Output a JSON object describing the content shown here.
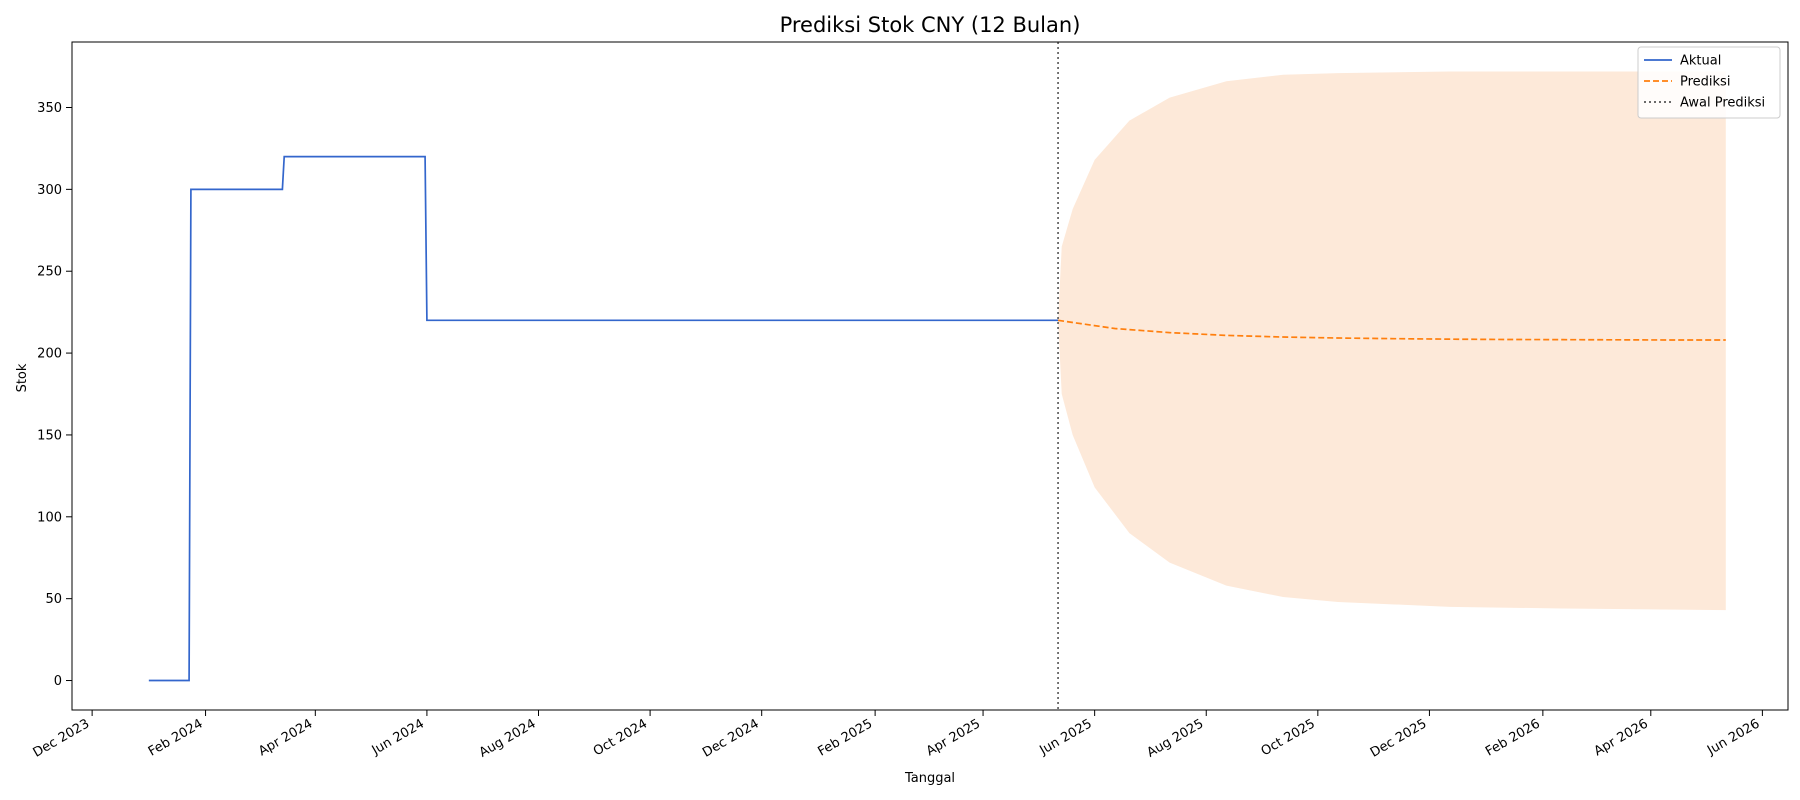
{
  "chart_data": {
    "type": "line",
    "title": "Prediksi Stok CNY (12 Bulan)",
    "xlabel": "Tanggal",
    "ylabel": "Stok",
    "x_type": "date",
    "xlim": [
      "2023-11-20",
      "2026-06-15"
    ],
    "ylim": [
      -18,
      390
    ],
    "y_ticks": [
      0,
      50,
      100,
      150,
      200,
      250,
      300,
      350
    ],
    "x_ticks": [
      {
        "date": "2023-12-01",
        "label": "Dec 2023"
      },
      {
        "date": "2024-02-01",
        "label": "Feb 2024"
      },
      {
        "date": "2024-04-01",
        "label": "Apr 2024"
      },
      {
        "date": "2024-06-01",
        "label": "Jun 2024"
      },
      {
        "date": "2024-08-01",
        "label": "Aug 2024"
      },
      {
        "date": "2024-10-01",
        "label": "Oct 2024"
      },
      {
        "date": "2024-12-01",
        "label": "Dec 2024"
      },
      {
        "date": "2025-02-01",
        "label": "Feb 2025"
      },
      {
        "date": "2025-04-01",
        "label": "Apr 2025"
      },
      {
        "date": "2025-06-01",
        "label": "Jun 2025"
      },
      {
        "date": "2025-08-01",
        "label": "Aug 2025"
      },
      {
        "date": "2025-10-01",
        "label": "Oct 2025"
      },
      {
        "date": "2025-12-01",
        "label": "Dec 2025"
      },
      {
        "date": "2026-02-01",
        "label": "Feb 2026"
      },
      {
        "date": "2026-04-01",
        "label": "Apr 2026"
      },
      {
        "date": "2026-06-01",
        "label": "Jun 2026"
      }
    ],
    "grid": false,
    "legend_position": "top-right",
    "series": [
      {
        "name": "Aktual",
        "style": "solid",
        "color": "#3366cc",
        "points": [
          {
            "x": "2024-01-01",
            "y": 0
          },
          {
            "x": "2024-01-23",
            "y": 0
          },
          {
            "x": "2024-01-24",
            "y": 300
          },
          {
            "x": "2024-03-14",
            "y": 300
          },
          {
            "x": "2024-03-15",
            "y": 320
          },
          {
            "x": "2024-05-31",
            "y": 320
          },
          {
            "x": "2024-06-01",
            "y": 220
          },
          {
            "x": "2025-05-12",
            "y": 220
          }
        ]
      },
      {
        "name": "Prediksi",
        "style": "dashed",
        "color": "#ff7f0e",
        "points": [
          {
            "x": "2025-05-12",
            "y": 220
          },
          {
            "x": "2025-06-12",
            "y": 215
          },
          {
            "x": "2025-07-12",
            "y": 212.5
          },
          {
            "x": "2025-08-12",
            "y": 210.8
          },
          {
            "x": "2025-09-12",
            "y": 209.8
          },
          {
            "x": "2025-10-12",
            "y": 209.2
          },
          {
            "x": "2025-11-12",
            "y": 208.8
          },
          {
            "x": "2025-12-12",
            "y": 208.5
          },
          {
            "x": "2026-01-12",
            "y": 208.3
          },
          {
            "x": "2026-02-12",
            "y": 208.2
          },
          {
            "x": "2026-03-12",
            "y": 208.1
          },
          {
            "x": "2026-04-12",
            "y": 208.0
          },
          {
            "x": "2026-05-12",
            "y": 208.0
          }
        ]
      },
      {
        "name": "Awal Prediksi",
        "style": "dotted",
        "color": "#555555",
        "vertical_line_at": "2025-05-12"
      }
    ],
    "confidence_band": {
      "color": "#fde9d9",
      "points": [
        {
          "x": "2025-05-12",
          "lower": 220,
          "upper": 220
        },
        {
          "x": "2025-05-14",
          "lower": 175,
          "upper": 265
        },
        {
          "x": "2025-05-20",
          "lower": 150,
          "upper": 288
        },
        {
          "x": "2025-06-01",
          "lower": 118,
          "upper": 318
        },
        {
          "x": "2025-06-20",
          "lower": 90,
          "upper": 342
        },
        {
          "x": "2025-07-12",
          "lower": 72,
          "upper": 356
        },
        {
          "x": "2025-08-12",
          "lower": 58,
          "upper": 366
        },
        {
          "x": "2025-09-12",
          "lower": 51,
          "upper": 370
        },
        {
          "x": "2025-10-12",
          "lower": 48,
          "upper": 371
        },
        {
          "x": "2025-12-12",
          "lower": 45,
          "upper": 372
        },
        {
          "x": "2026-02-12",
          "lower": 44,
          "upper": 372
        },
        {
          "x": "2026-05-12",
          "lower": 43,
          "upper": 372
        }
      ]
    }
  }
}
